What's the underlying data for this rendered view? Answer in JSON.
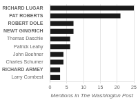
{
  "chart_data": {
    "type": "bar",
    "orientation": "horizontal",
    "categories": [
      "Larry Combest",
      "RICHARD ARMEY",
      "Charles Schumer",
      "John Boehner",
      "Patrick Leahy",
      "Thomas Daschle",
      "NEWT GINGRICH",
      "ROBERT DOLE",
      "PAT ROBERTS",
      "RICHARD LUGAR"
    ],
    "values": [
      3,
      3,
      4,
      4,
      6,
      6,
      7,
      7,
      21,
      25
    ],
    "color": "#1a1a1a",
    "xlabel": "Mentions in The Washington Post",
    "xlim": [
      0,
      25
    ],
    "xticks": [
      0,
      5,
      10,
      15,
      20,
      25
    ],
    "grid": true
  }
}
